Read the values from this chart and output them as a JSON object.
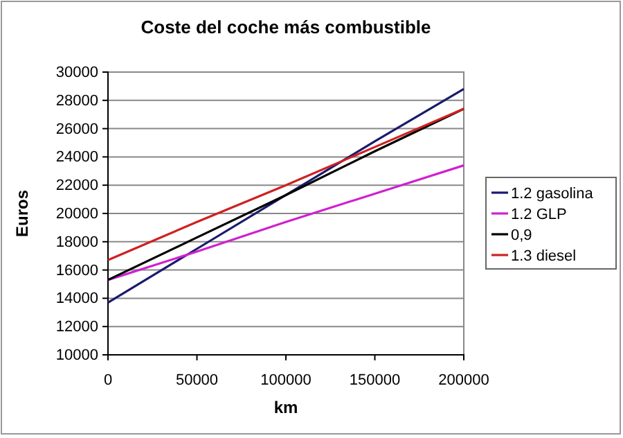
{
  "chart_data": {
    "type": "line",
    "title": "Coste del coche más combustible",
    "xlabel": "km",
    "ylabel": "Euros",
    "x": [
      0,
      50000,
      100000,
      150000,
      200000
    ],
    "series": [
      {
        "name": "1.2 gasolina",
        "color": "#1a1a6e",
        "values": [
          13700,
          17500,
          21300,
          25100,
          28800
        ]
      },
      {
        "name": "1.2 GLP",
        "color": "#d020d0",
        "values": [
          15300,
          17300,
          19400,
          21400,
          23400
        ]
      },
      {
        "name": "0,9",
        "color": "#000000",
        "values": [
          15300,
          18300,
          21300,
          24400,
          27400
        ]
      },
      {
        "name": "1.3 diesel",
        "color": "#d02020",
        "values": [
          16700,
          19400,
          22000,
          24700,
          27400
        ]
      }
    ],
    "xlim": [
      0,
      200000
    ],
    "xticks": [
      0,
      50000,
      100000,
      150000,
      200000
    ],
    "ylim": [
      10000,
      30000
    ],
    "yticks": [
      10000,
      12000,
      14000,
      16000,
      18000,
      20000,
      22000,
      24000,
      26000,
      28000,
      30000
    ],
    "grid": "y",
    "legend": "right",
    "marker": "none",
    "line_style": "solid"
  }
}
